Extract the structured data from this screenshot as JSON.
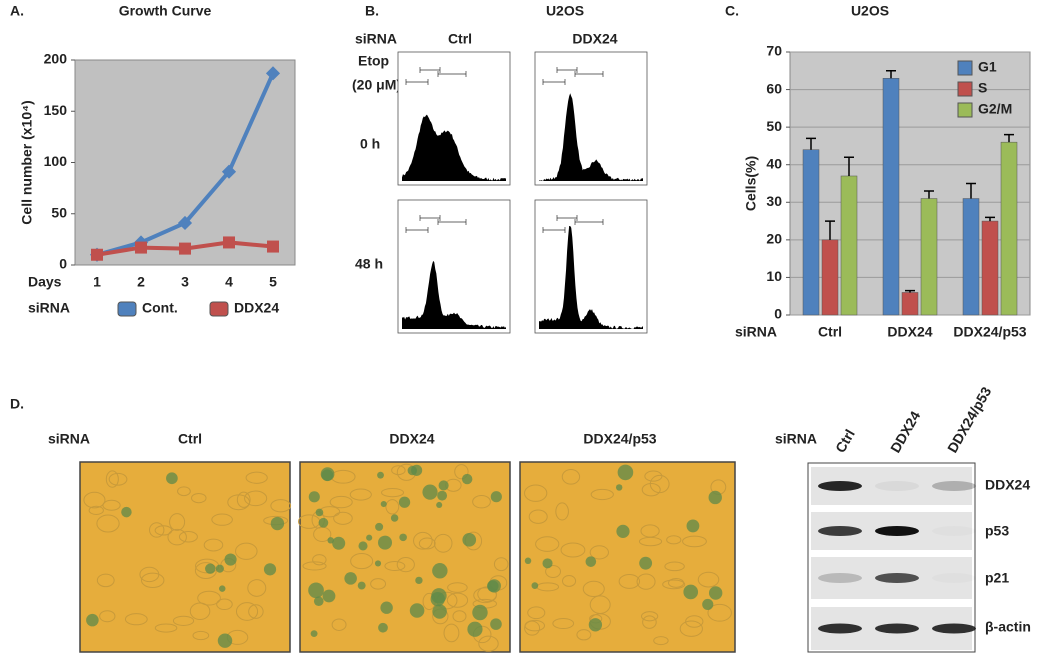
{
  "chart_data": [
    {
      "type": "line",
      "label": "A.",
      "title": "Growth Curve",
      "ylabel": "Cell number (x10⁴)",
      "xlabel": "Days",
      "categories": [
        1,
        2,
        3,
        4,
        5
      ],
      "legend_title": "siRNA",
      "legend": "bottom",
      "grid": false,
      "series": [
        {
          "name": "Cont.",
          "color": "#4f81bd",
          "values": [
            10,
            22,
            41,
            91,
            187
          ]
        },
        {
          "name": "DDX24",
          "color": "#c0504d",
          "values": [
            10,
            17,
            16,
            22,
            18
          ]
        }
      ],
      "ylim": [
        0,
        200
      ],
      "yticks": [
        0,
        50,
        100,
        150,
        200
      ]
    },
    {
      "type": "bar",
      "label": "C.",
      "title": "U2OS",
      "ylabel": "Cells(%)",
      "xlabel": "siRNA",
      "categories": [
        "Ctrl",
        "DDX24",
        "DDX24/p53"
      ],
      "legend": "upper right",
      "grid": true,
      "series": [
        {
          "name": "G1",
          "color": "#4f81bd",
          "values": [
            44,
            63,
            31
          ],
          "errors": [
            3,
            2,
            4
          ]
        },
        {
          "name": "S",
          "color": "#c0504d",
          "values": [
            20,
            6,
            25
          ],
          "errors": [
            5,
            0.5,
            1
          ]
        },
        {
          "name": "G2/M",
          "color": "#9bbb59",
          "values": [
            37,
            31,
            46
          ],
          "errors": [
            5,
            2,
            2
          ]
        }
      ],
      "ylim": [
        0,
        70
      ],
      "yticks": [
        0,
        10,
        20,
        30,
        40,
        50,
        60,
        70
      ]
    }
  ],
  "panel_b": {
    "label": "B.",
    "title": "U2OS",
    "row_header": "siRNA",
    "columns": [
      "Ctrl",
      "DDX24"
    ],
    "treatment": "Etop",
    "dose": "(20 μM)",
    "rows": [
      "0 h",
      "48 h"
    ]
  },
  "panel_d": {
    "label": "D.",
    "row_header": "siRNA",
    "columns": [
      "Ctrl",
      "DDX24",
      "DDX24/p53"
    ],
    "blot": {
      "row_header": "siRNA",
      "lanes": [
        "Ctrl",
        "DDX24",
        "DDX24/p53"
      ],
      "bands": [
        "DDX24",
        "p53",
        "p21",
        "β-actin"
      ]
    }
  }
}
